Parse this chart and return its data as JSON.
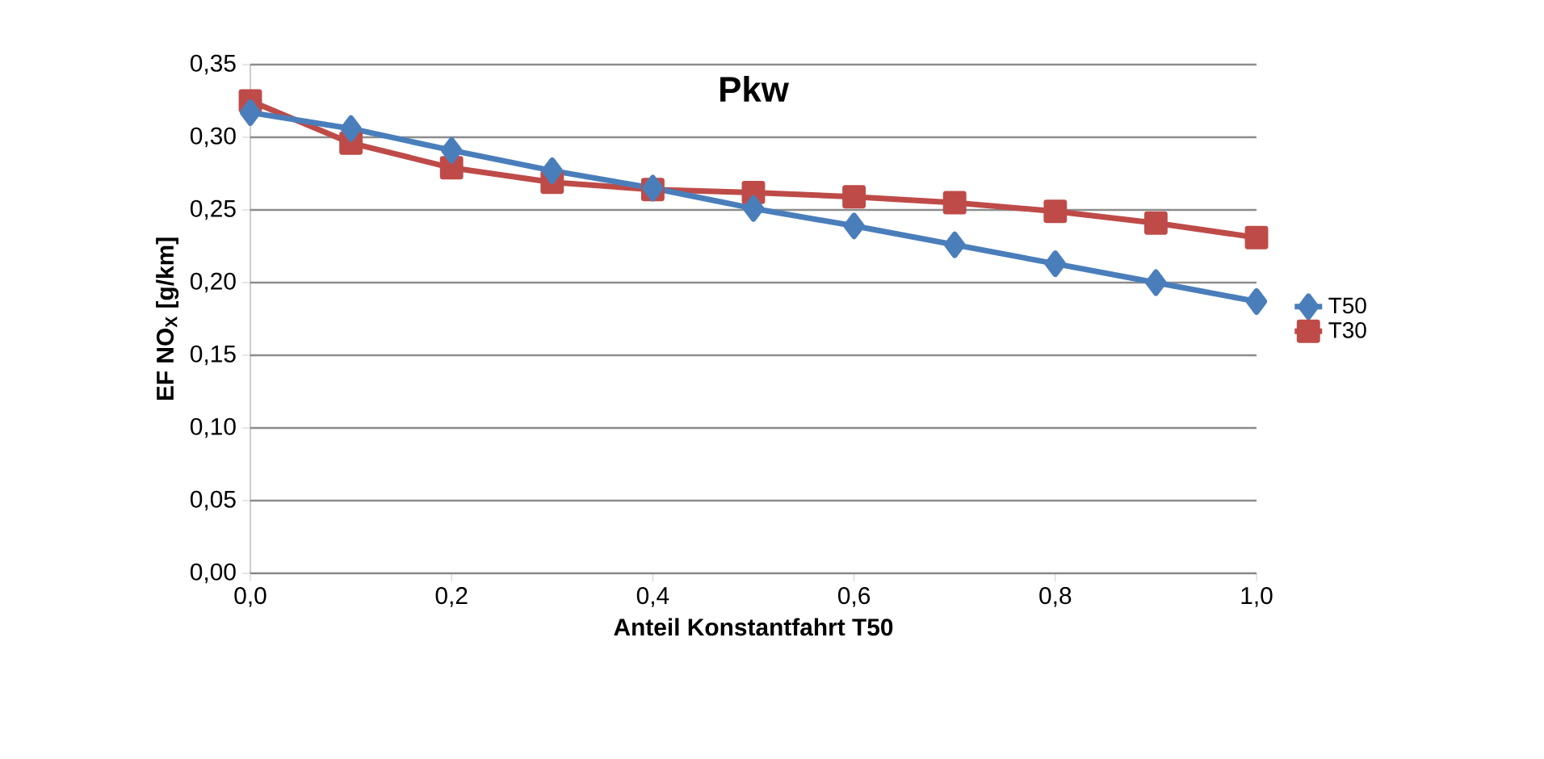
{
  "chart_data": {
    "type": "line",
    "title": "Pkw",
    "xlabel": "Anteil Konstantfahrt  T50",
    "ylabel": "EF NO$_{X}$ [g/km]",
    "x": [
      0.0,
      0.1,
      0.2,
      0.3,
      0.4,
      0.5,
      0.6,
      0.7,
      0.8,
      0.9,
      1.0
    ],
    "series": [
      {
        "name": "T50",
        "color": "#4a7ebb",
        "marker": "diamond",
        "values": [
          0.317,
          0.306,
          0.291,
          0.277,
          0.265,
          0.251,
          0.239,
          0.226,
          0.213,
          0.2,
          0.187
        ]
      },
      {
        "name": "T30",
        "color": "#be4b48",
        "marker": "square",
        "values": [
          0.325,
          0.296,
          0.279,
          0.269,
          0.264,
          0.262,
          0.259,
          0.255,
          0.249,
          0.241,
          0.231
        ]
      }
    ],
    "xlim": [
      0.0,
      1.0
    ],
    "xticks": [
      {
        "value": 0.0,
        "label": "0,0"
      },
      {
        "value": 0.2,
        "label": "0,2"
      },
      {
        "value": 0.4,
        "label": "0,4"
      },
      {
        "value": 0.6,
        "label": "0,6"
      },
      {
        "value": 0.8,
        "label": "0,8"
      },
      {
        "value": 1.0,
        "label": "1,0"
      }
    ],
    "ylim": [
      0.0,
      0.35
    ],
    "yticks": [
      {
        "value": 0.0,
        "label": "0,00"
      },
      {
        "value": 0.05,
        "label": "0,05"
      },
      {
        "value": 0.1,
        "label": "0,10"
      },
      {
        "value": 0.15,
        "label": "0,15"
      },
      {
        "value": 0.2,
        "label": "0,20"
      },
      {
        "value": 0.25,
        "label": "0,25"
      },
      {
        "value": 0.3,
        "label": "0,30"
      },
      {
        "value": 0.35,
        "label": "0,35"
      }
    ],
    "grid": "y",
    "legend": "right",
    "line_style": "solid"
  }
}
